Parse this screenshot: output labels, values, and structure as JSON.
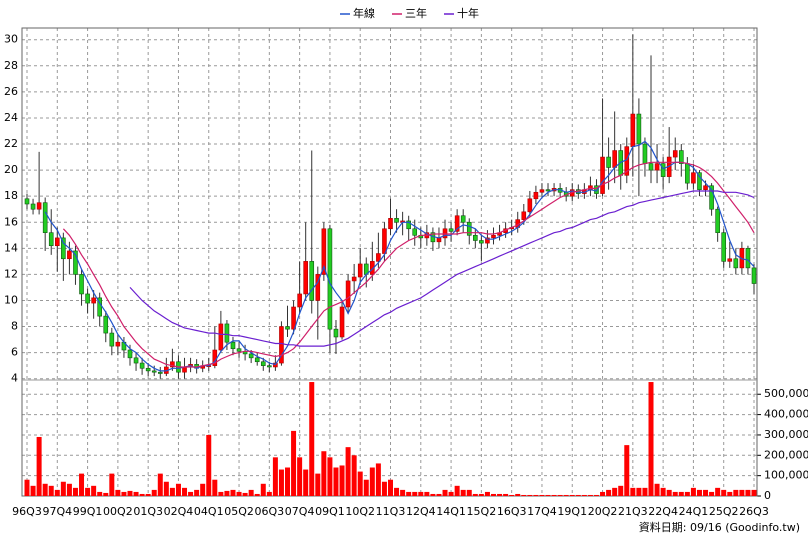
{
  "chart_data": {
    "type": "candlestick",
    "source": "資料日期: 09/16 (Goodinfo.tw)",
    "up_color": "#ff0000",
    "down_color": "#22cc22",
    "grid": true,
    "ylim": [
      3.9,
      30.9
    ],
    "yticks": [
      4,
      6,
      8,
      10,
      12,
      14,
      16,
      18,
      20,
      22,
      24,
      26,
      28,
      30
    ],
    "categories": [
      "96Q3",
      null,
      null,
      null,
      null,
      "97Q4",
      null,
      null,
      null,
      null,
      "99Q1",
      null,
      null,
      null,
      null,
      "00Q2",
      null,
      null,
      null,
      null,
      "01Q3",
      null,
      null,
      null,
      null,
      "02Q4",
      null,
      null,
      null,
      null,
      "04Q1",
      null,
      null,
      null,
      null,
      "05Q2",
      null,
      null,
      null,
      null,
      "06Q3",
      null,
      null,
      null,
      null,
      "07Q4",
      null,
      null,
      null,
      null,
      "09Q1",
      null,
      null,
      null,
      null,
      "10Q2",
      null,
      null,
      null,
      null,
      "11Q3",
      null,
      null,
      null,
      null,
      "12Q4",
      null,
      null,
      null,
      null,
      "14Q1",
      null,
      null,
      null,
      null,
      "15Q2",
      null,
      null,
      null,
      null,
      "16Q3",
      null,
      null,
      null,
      null,
      "17Q4",
      null,
      null,
      null,
      null,
      "19Q1",
      null,
      null,
      null,
      null,
      "20Q2",
      null,
      null,
      null,
      null,
      "21Q3",
      null,
      null,
      null,
      null,
      "22Q4",
      null,
      null,
      null,
      null,
      "24Q1",
      null,
      null,
      null,
      null,
      "25Q2",
      null,
      null,
      null,
      null,
      "26Q3"
    ],
    "open": [
      17.8,
      17.4,
      17.0,
      17.5,
      15.2,
      14.2,
      14.8,
      13.2,
      13.8,
      12.0,
      10.5,
      9.8,
      10.2,
      8.8,
      7.5,
      6.5,
      6.8,
      6.2,
      5.6,
      5.2,
      4.8,
      4.6,
      4.5,
      4.4,
      4.9,
      5.3,
      4.5,
      4.9,
      5.1,
      4.8,
      5.0,
      5.0,
      6.2,
      8.2,
      6.8,
      6.3,
      6.1,
      5.9,
      5.6,
      5.3,
      5.0,
      4.9,
      5.2,
      8.0,
      7.8,
      9.5,
      10.5,
      13.0,
      10.0,
      12.0,
      15.5,
      7.8,
      7.2,
      9.5,
      11.5,
      11.8,
      12.8,
      12.0,
      13.0,
      13.6,
      15.5,
      16.3,
      16.0,
      16.1,
      15.5,
      15.0,
      14.8,
      15.2,
      14.5,
      14.8,
      15.5,
      15.3,
      16.5,
      16.0,
      15.0,
      14.6,
      14.4,
      14.8,
      15.0,
      15.2,
      15.5,
      15.6,
      16.2,
      16.8,
      17.8,
      18.3,
      18.5,
      18.4,
      18.6,
      18.3,
      18.0,
      18.5,
      18.2,
      18.5,
      18.8,
      18.2,
      21.0,
      20.2,
      21.5,
      19.6,
      21.8,
      24.3,
      22.0,
      20.5,
      20.0,
      20.5,
      19.5,
      21.0,
      21.5,
      20.5,
      19.0,
      19.8,
      18.5,
      18.8,
      17.0,
      15.2,
      13.0,
      13.2,
      12.5,
      14.0,
      12.5
    ],
    "high": [
      18.2,
      17.8,
      21.4,
      17.9,
      17.0,
      15.6,
      15.2,
      14.5,
      14.2,
      12.4,
      10.9,
      10.8,
      10.6,
      9.2,
      7.9,
      7.4,
      7.2,
      6.6,
      6.0,
      5.6,
      5.2,
      5.0,
      4.9,
      5.6,
      6.3,
      5.8,
      5.6,
      5.6,
      5.5,
      5.4,
      5.6,
      8.0,
      9.2,
      8.5,
      7.2,
      6.8,
      6.6,
      6.2,
      6.0,
      5.6,
      5.3,
      5.8,
      8.4,
      9.6,
      10.0,
      13.0,
      16.0,
      21.5,
      12.6,
      16.0,
      15.8,
      8.5,
      10.0,
      12.0,
      12.8,
      14.0,
      13.3,
      14.5,
      15.2,
      16.0,
      17.8,
      17.0,
      16.8,
      16.5,
      16.2,
      15.6,
      15.8,
      15.6,
      15.6,
      16.2,
      16.0,
      17.0,
      17.0,
      16.3,
      15.5,
      15.0,
      15.4,
      15.6,
      15.8,
      16.0,
      16.2,
      16.8,
      17.4,
      18.4,
      18.8,
      19.0,
      19.0,
      19.0,
      19.0,
      18.7,
      19.0,
      18.9,
      19.0,
      19.5,
      19.3,
      25.5,
      22.5,
      24.5,
      22.0,
      22.5,
      30.4,
      25.5,
      22.5,
      28.8,
      22.0,
      21.0,
      23.3,
      22.5,
      22.0,
      21.0,
      20.5,
      20.0,
      19.2,
      19.0,
      17.2,
      15.5,
      14.5,
      14.0,
      14.5,
      14.2,
      12.8
    ],
    "low": [
      17.0,
      16.6,
      16.6,
      13.8,
      13.5,
      12.2,
      11.5,
      12.0,
      11.2,
      9.6,
      9.0,
      8.6,
      8.0,
      6.8,
      5.8,
      5.8,
      5.6,
      5.0,
      4.6,
      4.3,
      4.2,
      4.2,
      4.0,
      4.2,
      4.6,
      4.0,
      4.0,
      4.5,
      4.4,
      4.5,
      4.6,
      4.8,
      6.0,
      6.2,
      5.8,
      5.6,
      5.4,
      5.2,
      5.0,
      4.6,
      4.5,
      4.6,
      5.0,
      7.2,
      7.4,
      9.0,
      10.0,
      9.0,
      7.0,
      11.5,
      6.0,
      5.9,
      7.0,
      9.0,
      10.5,
      11.2,
      11.0,
      11.5,
      12.5,
      13.0,
      15.0,
      15.2,
      15.0,
      14.6,
      14.2,
      14.0,
      14.2,
      13.8,
      14.0,
      14.2,
      14.5,
      15.0,
      15.2,
      14.3,
      14.0,
      13.0,
      14.0,
      14.3,
      14.6,
      14.8,
      15.0,
      15.2,
      15.8,
      16.4,
      17.4,
      17.9,
      18.0,
      18.0,
      17.9,
      17.6,
      17.6,
      17.8,
      17.8,
      18.0,
      17.8,
      18.0,
      18.5,
      19.0,
      18.5,
      19.0,
      19.5,
      18.0,
      19.5,
      19.0,
      19.0,
      18.5,
      19.0,
      20.0,
      19.5,
      18.5,
      18.5,
      18.0,
      18.0,
      16.5,
      14.5,
      12.5,
      12.5,
      12.0,
      12.0,
      12.0,
      10.5
    ],
    "close": [
      17.4,
      17.0,
      17.5,
      15.2,
      14.2,
      14.8,
      13.2,
      13.8,
      12.0,
      10.5,
      9.8,
      10.2,
      8.8,
      7.5,
      6.5,
      6.8,
      6.2,
      5.6,
      5.2,
      4.8,
      4.6,
      4.5,
      4.4,
      4.9,
      5.3,
      4.5,
      4.9,
      5.1,
      4.8,
      5.0,
      5.0,
      6.2,
      8.2,
      6.8,
      6.3,
      6.1,
      5.9,
      5.6,
      5.3,
      5.0,
      4.9,
      5.2,
      8.0,
      7.8,
      9.5,
      10.5,
      13.0,
      10.0,
      12.0,
      15.5,
      7.8,
      7.2,
      9.5,
      11.5,
      11.8,
      12.8,
      12.0,
      13.0,
      13.6,
      15.5,
      16.3,
      16.0,
      16.1,
      15.5,
      15.0,
      14.8,
      15.2,
      14.5,
      14.8,
      15.5,
      15.3,
      16.5,
      16.0,
      15.0,
      14.6,
      14.4,
      14.8,
      15.0,
      15.2,
      15.5,
      15.6,
      16.2,
      16.8,
      17.8,
      18.3,
      18.5,
      18.4,
      18.6,
      18.3,
      18.0,
      18.5,
      18.2,
      18.5,
      18.8,
      18.2,
      21.0,
      20.2,
      21.5,
      19.6,
      21.8,
      24.3,
      22.0,
      20.5,
      20.0,
      20.5,
      19.5,
      21.0,
      21.5,
      20.5,
      19.0,
      19.8,
      18.5,
      18.8,
      17.0,
      15.2,
      13.0,
      13.2,
      12.5,
      14.0,
      12.5,
      11.3
    ],
    "series": [
      {
        "name": "年線",
        "type": "line",
        "color": "#2255cc",
        "values": [
          null,
          null,
          null,
          16.8,
          16.0,
          15.4,
          14.4,
          14.0,
          13.5,
          12.4,
          11.5,
          10.6,
          9.8,
          9.1,
          8.3,
          7.4,
          6.8,
          6.3,
          6.0,
          5.5,
          5.1,
          4.8,
          4.6,
          4.6,
          4.8,
          4.8,
          4.9,
          5.0,
          4.8,
          5.0,
          5.0,
          5.3,
          6.1,
          6.6,
          6.9,
          6.9,
          6.3,
          6.0,
          5.7,
          5.5,
          5.2,
          5.1,
          5.8,
          6.5,
          7.6,
          9.0,
          10.2,
          10.8,
          11.4,
          12.6,
          11.3,
          10.6,
          10.0,
          9.0,
          10.0,
          11.4,
          12.0,
          12.4,
          12.9,
          13.5,
          14.6,
          15.4,
          16.0,
          16.0,
          15.7,
          15.4,
          15.1,
          14.9,
          14.8,
          15.0,
          15.0,
          15.5,
          15.8,
          15.7,
          15.5,
          15.0,
          14.7,
          14.7,
          14.9,
          15.1,
          15.3,
          15.6,
          16.0,
          16.6,
          17.3,
          17.9,
          18.3,
          18.5,
          18.5,
          18.3,
          18.4,
          18.3,
          18.3,
          18.5,
          18.4,
          19.1,
          19.6,
          20.2,
          20.6,
          20.8,
          21.8,
          21.9,
          22.2,
          21.7,
          20.8,
          20.1,
          20.3,
          20.6,
          20.6,
          20.5,
          20.2,
          19.5,
          19.0,
          18.5,
          17.4,
          16.0,
          14.6,
          13.5,
          13.2,
          13.1,
          12.6
        ]
      },
      {
        "name": "三年",
        "type": "line",
        "color": "#d0206a",
        "values": [
          null,
          null,
          null,
          null,
          null,
          null,
          15.5,
          15.0,
          14.3,
          13.5,
          12.8,
          12.0,
          11.2,
          10.3,
          9.5,
          8.8,
          8.0,
          7.4,
          6.8,
          6.3,
          5.9,
          5.5,
          5.3,
          5.1,
          5.0,
          4.9,
          4.9,
          4.9,
          4.9,
          5.0,
          5.1,
          5.2,
          5.5,
          5.7,
          5.9,
          6.0,
          6.1,
          6.1,
          6.0,
          5.9,
          5.8,
          5.7,
          5.8,
          6.0,
          6.3,
          6.8,
          7.4,
          8.0,
          8.6,
          9.2,
          9.5,
          9.7,
          9.9,
          10.2,
          10.6,
          11.0,
          11.4,
          11.9,
          12.4,
          13.0,
          13.5,
          14.0,
          14.3,
          14.6,
          14.8,
          15.0,
          15.0,
          15.1,
          15.1,
          15.1,
          15.1,
          15.1,
          15.2,
          15.2,
          15.2,
          15.2,
          15.1,
          15.1,
          15.2,
          15.4,
          15.6,
          15.8,
          16.1,
          16.4,
          16.7,
          17.0,
          17.3,
          17.6,
          17.9,
          18.1,
          18.3,
          18.4,
          18.5,
          18.6,
          18.6,
          18.9,
          19.1,
          19.4,
          19.6,
          19.9,
          20.2,
          20.4,
          20.5,
          20.6,
          20.6,
          20.6,
          20.6,
          20.6,
          20.6,
          20.5,
          20.4,
          20.2,
          19.9,
          19.5,
          19.0,
          18.4,
          17.8,
          17.2,
          16.6,
          16.0,
          15.2
        ]
      },
      {
        "name": "十年",
        "type": "line",
        "color": "#6a1fd0",
        "values": [
          null,
          null,
          null,
          null,
          null,
          null,
          null,
          null,
          null,
          null,
          null,
          null,
          null,
          null,
          null,
          null,
          null,
          11.0,
          10.5,
          10.0,
          9.6,
          9.2,
          8.9,
          8.6,
          8.3,
          8.1,
          7.9,
          7.8,
          7.7,
          7.6,
          7.5,
          7.5,
          7.4,
          7.4,
          7.3,
          7.3,
          7.2,
          7.1,
          7.0,
          6.9,
          6.8,
          6.7,
          6.7,
          6.6,
          6.6,
          6.5,
          6.5,
          6.5,
          6.5,
          6.5,
          6.6,
          6.7,
          6.9,
          7.1,
          7.4,
          7.7,
          8.0,
          8.3,
          8.6,
          8.9,
          9.1,
          9.4,
          9.6,
          9.8,
          10.0,
          10.2,
          10.5,
          10.8,
          11.1,
          11.4,
          11.7,
          12.0,
          12.2,
          12.4,
          12.6,
          12.8,
          13.0,
          13.2,
          13.4,
          13.6,
          13.8,
          14.0,
          14.2,
          14.4,
          14.6,
          14.8,
          15.0,
          15.2,
          15.3,
          15.5,
          15.6,
          15.8,
          16.0,
          16.2,
          16.3,
          16.5,
          16.7,
          16.8,
          17.0,
          17.2,
          17.3,
          17.5,
          17.6,
          17.7,
          17.8,
          17.9,
          18.0,
          18.1,
          18.2,
          18.3,
          18.4,
          18.4,
          18.4,
          18.4,
          18.4,
          18.3,
          18.3,
          18.3,
          18.2,
          18.1,
          17.9
        ]
      }
    ],
    "volume": {
      "type": "bar",
      "color": "#ff0000",
      "ylim": [
        0,
        570000
      ],
      "yticks": [
        0,
        {
          "value": 100000,
          "label": "100,000"
        },
        {
          "value": 200000,
          "label": "200,000"
        },
        {
          "value": 300000,
          "label": "300,000"
        },
        {
          "value": 400000,
          "label": "400,000"
        },
        {
          "value": 500000,
          "label": "500,000"
        }
      ],
      "values": [
        80000,
        50000,
        290000,
        60000,
        50000,
        30000,
        70000,
        60000,
        40000,
        110000,
        40000,
        50000,
        20000,
        15000,
        110000,
        30000,
        20000,
        25000,
        20000,
        10000,
        10000,
        30000,
        110000,
        70000,
        40000,
        60000,
        40000,
        20000,
        30000,
        60000,
        300000,
        80000,
        20000,
        25000,
        30000,
        20000,
        15000,
        30000,
        10000,
        60000,
        20000,
        190000,
        130000,
        140000,
        320000,
        190000,
        130000,
        560000,
        110000,
        220000,
        190000,
        140000,
        150000,
        240000,
        200000,
        120000,
        80000,
        140000,
        160000,
        70000,
        80000,
        40000,
        30000,
        20000,
        20000,
        20000,
        20000,
        10000,
        10000,
        30000,
        20000,
        50000,
        30000,
        30000,
        10000,
        10000,
        20000,
        10000,
        10000,
        10000,
        5000,
        10000,
        5000,
        5000,
        5000,
        5000,
        5000,
        5000,
        5000,
        5000,
        5000,
        5000,
        5000,
        5000,
        5000,
        20000,
        30000,
        40000,
        50000,
        250000,
        40000,
        40000,
        40000,
        560000,
        60000,
        40000,
        30000,
        20000,
        20000,
        20000,
        40000,
        30000,
        30000,
        20000,
        40000,
        30000,
        20000,
        30000,
        30000,
        30000,
        30000
      ]
    }
  }
}
